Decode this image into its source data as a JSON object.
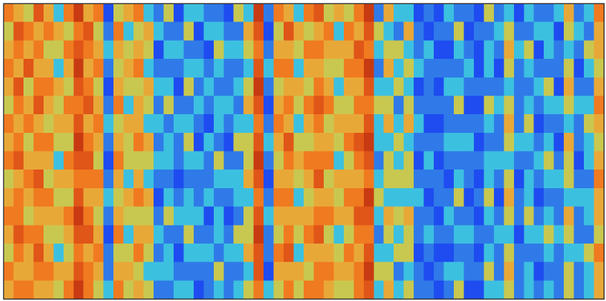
{
  "chart_data": {
    "type": "heatmap",
    "zlim": [
      0,
      9
    ],
    "colorscale": [
      "#1028c8",
      "#1e4cf0",
      "#2f7ae8",
      "#3cc0e0",
      "#c8c850",
      "#e8a838",
      "#f07a20",
      "#e05518",
      "#c83a12",
      "#a02a0c"
    ],
    "z": [
      [
        6,
        5,
        4,
        7,
        5,
        3,
        6,
        8,
        5,
        6,
        1,
        4,
        5,
        6,
        3,
        2,
        4,
        1,
        3,
        3,
        2,
        2,
        1,
        4,
        3,
        8,
        2,
        6,
        5,
        3,
        6,
        7,
        4,
        5,
        4,
        6,
        8,
        2,
        5,
        3,
        3,
        1,
        2,
        1,
        3,
        2,
        2,
        1,
        4,
        2,
        3,
        1,
        3,
        2,
        2,
        3,
        5,
        2,
        3,
        6
      ],
      [
        4,
        7,
        6,
        5,
        6,
        5,
        4,
        6,
        7,
        4,
        2,
        6,
        3,
        4,
        5,
        3,
        2,
        2,
        4,
        1,
        3,
        3,
        2,
        2,
        5,
        7,
        1,
        4,
        7,
        5,
        4,
        5,
        6,
        3,
        6,
        5,
        7,
        4,
        3,
        2,
        5,
        2,
        1,
        2,
        2,
        4,
        1,
        2,
        2,
        3,
        4,
        2,
        2,
        3,
        3,
        1,
        4,
        3,
        2,
        5
      ],
      [
        5,
        6,
        5,
        6,
        4,
        4,
        6,
        7,
        6,
        5,
        3,
        5,
        4,
        5,
        4,
        1,
        3,
        3,
        2,
        2,
        1,
        4,
        3,
        3,
        4,
        6,
        2,
        5,
        5,
        4,
        6,
        6,
        5,
        5,
        5,
        7,
        6,
        3,
        4,
        4,
        3,
        2,
        3,
        1,
        1,
        3,
        2,
        1,
        3,
        2,
        5,
        3,
        4,
        1,
        3,
        2,
        3,
        2,
        4,
        5
      ],
      [
        6,
        5,
        7,
        5,
        5,
        3,
        5,
        8,
        5,
        6,
        2,
        4,
        5,
        6,
        3,
        2,
        2,
        2,
        3,
        3,
        2,
        3,
        2,
        2,
        3,
        7,
        3,
        6,
        6,
        3,
        5,
        5,
        4,
        4,
        6,
        6,
        8,
        2,
        5,
        3,
        4,
        3,
        2,
        2,
        2,
        2,
        3,
        1,
        3,
        1,
        4,
        2,
        3,
        2,
        2,
        2,
        4,
        1,
        3,
        4
      ],
      [
        5,
        7,
        4,
        6,
        6,
        5,
        4,
        7,
        6,
        4,
        1,
        5,
        4,
        4,
        5,
        3,
        3,
        1,
        4,
        2,
        3,
        2,
        2,
        3,
        4,
        8,
        2,
        4,
        5,
        5,
        4,
        6,
        5,
        3,
        5,
        5,
        7,
        3,
        3,
        4,
        3,
        1,
        2,
        1,
        3,
        3,
        2,
        2,
        2,
        2,
        3,
        2,
        2,
        3,
        4,
        1,
        5,
        2,
        2,
        5
      ],
      [
        4,
        6,
        5,
        7,
        5,
        4,
        6,
        6,
        7,
        5,
        2,
        6,
        3,
        5,
        4,
        2,
        4,
        2,
        2,
        3,
        2,
        3,
        3,
        2,
        5,
        7,
        1,
        5,
        6,
        4,
        6,
        7,
        6,
        4,
        4,
        6,
        6,
        4,
        4,
        2,
        4,
        2,
        2,
        2,
        2,
        4,
        1,
        1,
        4,
        3,
        4,
        2,
        3,
        2,
        3,
        3,
        4,
        3,
        3,
        6
      ],
      [
        6,
        5,
        6,
        5,
        4,
        5,
        5,
        7,
        5,
        6,
        3,
        4,
        5,
        5,
        3,
        3,
        2,
        3,
        3,
        2,
        1,
        3,
        2,
        3,
        3,
        6,
        2,
        6,
        5,
        3,
        5,
        6,
        4,
        5,
        5,
        5,
        7,
        3,
        5,
        3,
        5,
        3,
        1,
        1,
        2,
        2,
        2,
        2,
        3,
        2,
        5,
        2,
        4,
        1,
        2,
        2,
        3,
        2,
        4,
        5
      ],
      [
        5,
        6,
        4,
        6,
        6,
        4,
        4,
        8,
        6,
        5,
        2,
        5,
        4,
        6,
        5,
        2,
        3,
        2,
        4,
        1,
        3,
        2,
        1,
        4,
        4,
        7,
        3,
        5,
        7,
        4,
        4,
        5,
        5,
        4,
        6,
        7,
        8,
        3,
        3,
        4,
        3,
        2,
        2,
        2,
        3,
        3,
        3,
        1,
        2,
        2,
        4,
        3,
        3,
        2,
        3,
        1,
        5,
        2,
        3,
        4
      ],
      [
        6,
        7,
        5,
        5,
        5,
        3,
        6,
        7,
        7,
        4,
        1,
        6,
        4,
        4,
        4,
        3,
        3,
        2,
        3,
        3,
        2,
        4,
        2,
        2,
        4,
        8,
        2,
        4,
        6,
        5,
        6,
        6,
        6,
        3,
        4,
        6,
        7,
        2,
        4,
        3,
        4,
        1,
        3,
        1,
        2,
        2,
        2,
        2,
        3,
        3,
        3,
        2,
        2,
        3,
        4,
        2,
        4,
        1,
        3,
        5
      ],
      [
        4,
        5,
        6,
        7,
        4,
        5,
        5,
        6,
        6,
        6,
        2,
        5,
        3,
        5,
        3,
        2,
        2,
        1,
        2,
        2,
        2,
        3,
        3,
        3,
        5,
        7,
        1,
        5,
        5,
        4,
        5,
        7,
        4,
        5,
        5,
        5,
        6,
        3,
        4,
        4,
        4,
        2,
        2,
        2,
        1,
        3,
        2,
        1,
        3,
        2,
        4,
        1,
        3,
        2,
        3,
        3,
        4,
        2,
        2,
        6
      ],
      [
        5,
        6,
        5,
        6,
        6,
        4,
        4,
        7,
        5,
        5,
        3,
        4,
        5,
        6,
        5,
        1,
        3,
        2,
        3,
        2,
        3,
        2,
        2,
        3,
        3,
        6,
        2,
        6,
        6,
        3,
        4,
        5,
        5,
        4,
        6,
        6,
        8,
        4,
        3,
        3,
        3,
        3,
        1,
        2,
        2,
        4,
        1,
        2,
        4,
        1,
        5,
        2,
        3,
        1,
        2,
        2,
        3,
        3,
        3,
        5
      ],
      [
        6,
        6,
        4,
        5,
        5,
        5,
        6,
        8,
        6,
        4,
        2,
        5,
        4,
        4,
        4,
        2,
        4,
        3,
        3,
        3,
        1,
        3,
        1,
        2,
        4,
        7,
        3,
        5,
        5,
        5,
        5,
        6,
        6,
        5,
        5,
        7,
        7,
        3,
        5,
        4,
        5,
        2,
        2,
        1,
        3,
        2,
        2,
        1,
        3,
        2,
        4,
        2,
        4,
        2,
        3,
        2,
        5,
        2,
        3,
        5
      ],
      [
        5,
        7,
        6,
        6,
        4,
        4,
        5,
        7,
        7,
        5,
        1,
        6,
        3,
        5,
        5,
        3,
        2,
        2,
        4,
        2,
        2,
        3,
        2,
        4,
        4,
        8,
        2,
        4,
        6,
        4,
        6,
        7,
        4,
        3,
        4,
        6,
        6,
        2,
        4,
        3,
        4,
        2,
        3,
        2,
        2,
        3,
        3,
        2,
        2,
        3,
        3,
        1,
        3,
        3,
        4,
        3,
        4,
        2,
        2,
        4
      ],
      [
        4,
        6,
        5,
        7,
        5,
        3,
        4,
        6,
        5,
        6,
        2,
        4,
        4,
        6,
        4,
        2,
        3,
        1,
        3,
        3,
        3,
        2,
        3,
        3,
        5,
        7,
        2,
        6,
        7,
        3,
        5,
        5,
        5,
        4,
        6,
        5,
        7,
        3,
        3,
        4,
        4,
        1,
        2,
        1,
        1,
        2,
        2,
        1,
        3,
        2,
        4,
        2,
        2,
        2,
        3,
        2,
        3,
        3,
        4,
        6
      ],
      [
        6,
        5,
        5,
        6,
        6,
        5,
        5,
        7,
        6,
        5,
        2,
        5,
        5,
        4,
        3,
        3,
        3,
        2,
        2,
        2,
        2,
        4,
        2,
        2,
        3,
        7,
        1,
        5,
        5,
        5,
        4,
        6,
        6,
        5,
        5,
        6,
        8,
        4,
        4,
        2,
        3,
        2,
        1,
        2,
        3,
        3,
        2,
        2,
        4,
        2,
        5,
        2,
        3,
        1,
        2,
        2,
        4,
        2,
        3,
        5
      ],
      [
        5,
        6,
        6,
        5,
        5,
        4,
        6,
        8,
        6,
        4,
        3,
        6,
        4,
        5,
        4,
        2,
        2,
        3,
        3,
        1,
        2,
        3,
        2,
        3,
        4,
        6,
        3,
        4,
        6,
        4,
        6,
        6,
        5,
        4,
        4,
        6,
        7,
        3,
        5,
        3,
        4,
        2,
        2,
        1,
        2,
        4,
        1,
        1,
        3,
        3,
        4,
        2,
        3,
        2,
        3,
        2,
        4,
        2,
        3,
        5
      ]
    ]
  }
}
